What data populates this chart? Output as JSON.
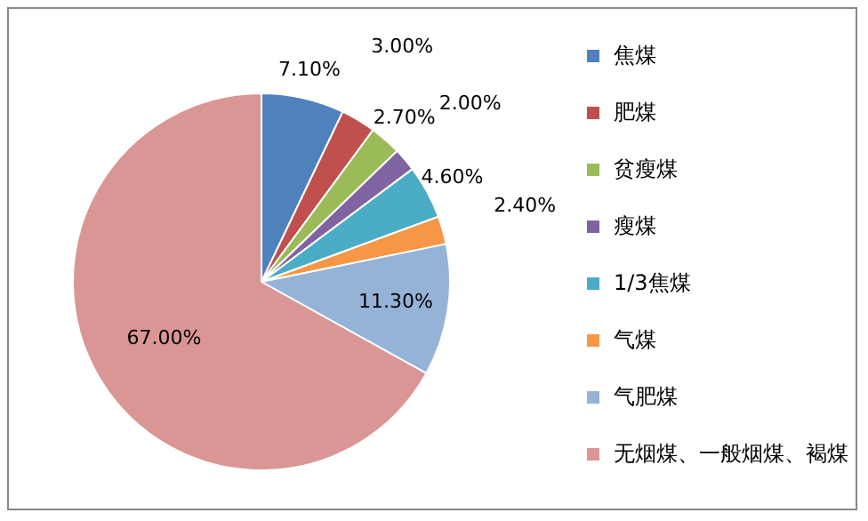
{
  "chart_data": {
    "type": "pie",
    "categories": [
      "焦煤",
      "肥煤",
      "贫瘦煤",
      "瘦煤",
      "1/3焦煤",
      "气煤",
      "气肥煤",
      "无烟煤、一般烟煤、褐煤"
    ],
    "values": [
      7.1,
      3.0,
      2.7,
      2.0,
      4.6,
      2.4,
      11.3,
      67.0
    ],
    "colors": [
      "#4f81bd",
      "#c0504d",
      "#9bbb59",
      "#8064a2",
      "#4bacc6",
      "#f79646",
      "#95b3d7",
      "#d99694"
    ],
    "value_labels": [
      "7.10%",
      "3.00%",
      "2.70%",
      "2.00%",
      "4.60%",
      "2.40%",
      "11.30%",
      "67.00%"
    ],
    "legend": "right"
  }
}
